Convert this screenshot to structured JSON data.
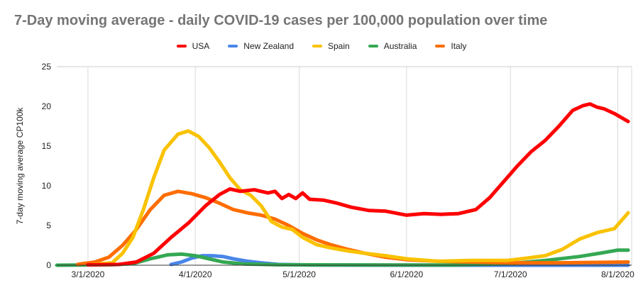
{
  "chart_data": {
    "type": "line",
    "title": "7-Day moving average - daily COVID-19 cases per 100,000 population over time",
    "xlabel": "",
    "ylabel": "7-day moving average CP100k",
    "ylim": [
      0,
      25
    ],
    "yticks": [
      "0",
      "5",
      "10",
      "15",
      "20",
      "25"
    ],
    "xlim": [
      "2020-02-21",
      "2020-08-05"
    ],
    "xticks": [
      {
        "date": "2020-03-01",
        "label": "3/1/2020"
      },
      {
        "date": "2020-04-01",
        "label": "4/1/2020"
      },
      {
        "date": "2020-05-01",
        "label": "5/1/2020"
      },
      {
        "date": "2020-06-01",
        "label": "6/1/2020"
      },
      {
        "date": "2020-07-01",
        "label": "7/1/2020"
      },
      {
        "date": "2020-08-01",
        "label": "8/1/2020"
      }
    ],
    "grid": "vertical",
    "legend_position": "top",
    "series": [
      {
        "name": "USA",
        "color": "#ff0000",
        "points": [
          [
            "2020-03-01",
            0.05
          ],
          [
            "2020-03-10",
            0.1
          ],
          [
            "2020-03-15",
            0.4
          ],
          [
            "2020-03-20",
            1.5
          ],
          [
            "2020-03-25",
            3.5
          ],
          [
            "2020-03-30",
            5.3
          ],
          [
            "2020-04-04",
            7.5
          ],
          [
            "2020-04-08",
            8.9
          ],
          [
            "2020-04-11",
            9.6
          ],
          [
            "2020-04-14",
            9.3
          ],
          [
            "2020-04-18",
            9.5
          ],
          [
            "2020-04-22",
            9.1
          ],
          [
            "2020-04-24",
            9.3
          ],
          [
            "2020-04-26",
            8.4
          ],
          [
            "2020-04-28",
            8.9
          ],
          [
            "2020-04-30",
            8.4
          ],
          [
            "2020-05-02",
            9.1
          ],
          [
            "2020-05-04",
            8.3
          ],
          [
            "2020-05-08",
            8.2
          ],
          [
            "2020-05-12",
            7.8
          ],
          [
            "2020-05-16",
            7.3
          ],
          [
            "2020-05-21",
            6.9
          ],
          [
            "2020-05-26",
            6.8
          ],
          [
            "2020-06-01",
            6.3
          ],
          [
            "2020-06-06",
            6.5
          ],
          [
            "2020-06-11",
            6.4
          ],
          [
            "2020-06-16",
            6.5
          ],
          [
            "2020-06-21",
            7.0
          ],
          [
            "2020-06-25",
            8.5
          ],
          [
            "2020-06-29",
            10.5
          ],
          [
            "2020-07-03",
            12.5
          ],
          [
            "2020-07-07",
            14.3
          ],
          [
            "2020-07-11",
            15.7
          ],
          [
            "2020-07-15",
            17.5
          ],
          [
            "2020-07-19",
            19.5
          ],
          [
            "2020-07-22",
            20.1
          ],
          [
            "2020-07-24",
            20.3
          ],
          [
            "2020-07-26",
            19.9
          ],
          [
            "2020-07-28",
            19.7
          ],
          [
            "2020-07-31",
            19.1
          ],
          [
            "2020-08-04",
            18.1
          ]
        ]
      },
      {
        "name": "New Zealand",
        "color": "#4a86e8",
        "points": [
          [
            "2020-03-25",
            0.1
          ],
          [
            "2020-03-28",
            0.4
          ],
          [
            "2020-03-31",
            0.9
          ],
          [
            "2020-04-03",
            1.2
          ],
          [
            "2020-04-06",
            1.2
          ],
          [
            "2020-04-09",
            1.1
          ],
          [
            "2020-04-12",
            0.8
          ],
          [
            "2020-04-16",
            0.5
          ],
          [
            "2020-04-20",
            0.3
          ],
          [
            "2020-04-25",
            0.1
          ],
          [
            "2020-05-05",
            0.02
          ],
          [
            "2020-06-01",
            0.0
          ],
          [
            "2020-08-04",
            0.0
          ]
        ]
      },
      {
        "name": "Spain",
        "color": "#f9c200",
        "points": [
          [
            "2020-03-01",
            0.05
          ],
          [
            "2020-03-08",
            0.3
          ],
          [
            "2020-03-11",
            1.5
          ],
          [
            "2020-03-14",
            3.5
          ],
          [
            "2020-03-17",
            7.0
          ],
          [
            "2020-03-20",
            11.0
          ],
          [
            "2020-03-23",
            14.5
          ],
          [
            "2020-03-27",
            16.5
          ],
          [
            "2020-03-30",
            16.9
          ],
          [
            "2020-04-02",
            16.2
          ],
          [
            "2020-04-05",
            14.8
          ],
          [
            "2020-04-08",
            13.0
          ],
          [
            "2020-04-11",
            11.0
          ],
          [
            "2020-04-14",
            9.5
          ],
          [
            "2020-04-17",
            8.8
          ],
          [
            "2020-04-20",
            7.5
          ],
          [
            "2020-04-23",
            5.5
          ],
          [
            "2020-04-26",
            4.8
          ],
          [
            "2020-04-29",
            4.5
          ],
          [
            "2020-05-02",
            3.5
          ],
          [
            "2020-05-06",
            2.6
          ],
          [
            "2020-05-10",
            2.2
          ],
          [
            "2020-05-15",
            1.8
          ],
          [
            "2020-05-20",
            1.5
          ],
          [
            "2020-05-26",
            1.2
          ],
          [
            "2020-06-01",
            0.8
          ],
          [
            "2020-06-10",
            0.5
          ],
          [
            "2020-06-20",
            0.6
          ],
          [
            "2020-06-30",
            0.6
          ],
          [
            "2020-07-06",
            0.9
          ],
          [
            "2020-07-11",
            1.2
          ],
          [
            "2020-07-16",
            2.0
          ],
          [
            "2020-07-21",
            3.3
          ],
          [
            "2020-07-26",
            4.1
          ],
          [
            "2020-07-31",
            4.6
          ],
          [
            "2020-08-04",
            6.6
          ]
        ]
      },
      {
        "name": "Australia",
        "color": "#34a853",
        "points": [
          [
            "2020-02-21",
            0.0
          ],
          [
            "2020-03-08",
            0.05
          ],
          [
            "2020-03-14",
            0.2
          ],
          [
            "2020-03-19",
            0.8
          ],
          [
            "2020-03-24",
            1.3
          ],
          [
            "2020-03-28",
            1.4
          ],
          [
            "2020-04-01",
            1.2
          ],
          [
            "2020-04-05",
            0.8
          ],
          [
            "2020-04-09",
            0.4
          ],
          [
            "2020-04-15",
            0.15
          ],
          [
            "2020-04-25",
            0.05
          ],
          [
            "2020-06-15",
            0.02
          ],
          [
            "2020-07-01",
            0.2
          ],
          [
            "2020-07-11",
            0.6
          ],
          [
            "2020-07-21",
            1.1
          ],
          [
            "2020-07-28",
            1.6
          ],
          [
            "2020-08-01",
            1.9
          ],
          [
            "2020-08-04",
            1.9
          ]
        ]
      },
      {
        "name": "Italy",
        "color": "#ff6d01",
        "points": [
          [
            "2020-02-27",
            0.1
          ],
          [
            "2020-03-03",
            0.4
          ],
          [
            "2020-03-07",
            1.0
          ],
          [
            "2020-03-11",
            2.5
          ],
          [
            "2020-03-15",
            4.5
          ],
          [
            "2020-03-19",
            7.0
          ],
          [
            "2020-03-23",
            8.8
          ],
          [
            "2020-03-27",
            9.3
          ],
          [
            "2020-03-31",
            9.0
          ],
          [
            "2020-04-04",
            8.5
          ],
          [
            "2020-04-08",
            7.8
          ],
          [
            "2020-04-12",
            7.0
          ],
          [
            "2020-04-16",
            6.6
          ],
          [
            "2020-04-20",
            6.3
          ],
          [
            "2020-04-24",
            5.8
          ],
          [
            "2020-04-28",
            5.0
          ],
          [
            "2020-05-02",
            4.0
          ],
          [
            "2020-05-06",
            3.2
          ],
          [
            "2020-05-10",
            2.6
          ],
          [
            "2020-05-15",
            2.0
          ],
          [
            "2020-05-20",
            1.5
          ],
          [
            "2020-05-26",
            1.0
          ],
          [
            "2020-06-01",
            0.7
          ],
          [
            "2020-06-10",
            0.5
          ],
          [
            "2020-06-20",
            0.4
          ],
          [
            "2020-07-01",
            0.3
          ],
          [
            "2020-07-15",
            0.3
          ],
          [
            "2020-08-04",
            0.4
          ]
        ]
      }
    ]
  }
}
